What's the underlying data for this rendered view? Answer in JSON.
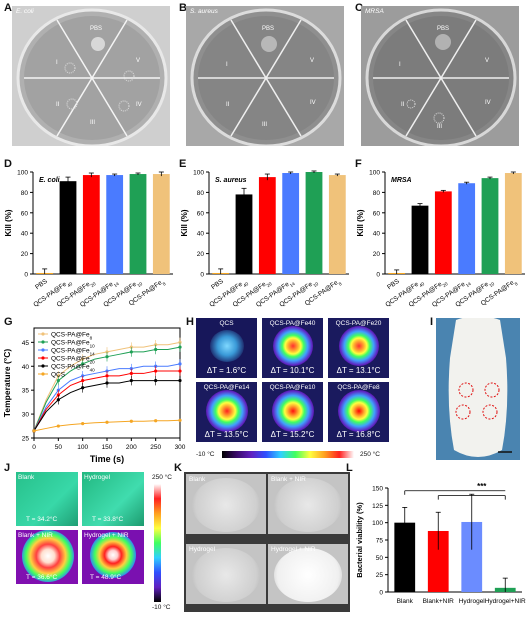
{
  "panels": {
    "A": "A",
    "B": "B",
    "C": "C",
    "D": "D",
    "E": "E",
    "F": "F",
    "G": "G",
    "H": "H",
    "I": "I",
    "J": "J",
    "K": "K",
    "L": "L"
  },
  "plates": [
    {
      "organism": "E. coli",
      "pbs": "PBS",
      "sectors": [
        "I",
        "II",
        "III",
        "IV",
        "V"
      ]
    },
    {
      "organism": "S. aureus",
      "pbs": "PBS",
      "sectors": [
        "I",
        "II",
        "III",
        "IV",
        "V"
      ]
    },
    {
      "organism": "MRSA",
      "pbs": "PBS",
      "sectors": [
        "I",
        "II",
        "III",
        "IV",
        "V"
      ]
    }
  ],
  "chart_data": [
    {
      "type": "bar",
      "panel": "D",
      "title": "E. coli",
      "ylabel": "Kill (%)",
      "ylim": [
        0,
        100
      ],
      "yticks": [
        0,
        20,
        40,
        60,
        80,
        100
      ],
      "categories": [
        "PBS",
        "QCS-PA@Fe40",
        "QCS-PA@Fe20",
        "QCS-PA@Fe14",
        "QCS-PA@Fe10",
        "QCS-PA@Fe8"
      ],
      "values": [
        1,
        91,
        97,
        97,
        98,
        98
      ],
      "errors": [
        4,
        4,
        2,
        1,
        1,
        2
      ],
      "colors": [
        "#f5a623",
        "#000000",
        "#ff0000",
        "#4a7bff",
        "#1fa055",
        "#f0c27a"
      ]
    },
    {
      "type": "bar",
      "panel": "E",
      "title": "S. aureus",
      "ylabel": "Kill (%)",
      "ylim": [
        0,
        100
      ],
      "yticks": [
        0,
        20,
        40,
        60,
        80,
        100
      ],
      "categories": [
        "PBS",
        "QCS-PA@Fe40",
        "QCS-PA@Fe20",
        "QCS-PA@Fe14",
        "QCS-PA@Fe10",
        "QCS-PA@Fe8"
      ],
      "values": [
        1,
        78,
        95,
        99,
        100,
        97
      ],
      "errors": [
        4,
        6,
        3,
        1,
        1,
        1
      ],
      "colors": [
        "#f5a623",
        "#000000",
        "#ff0000",
        "#4a7bff",
        "#1fa055",
        "#f0c27a"
      ]
    },
    {
      "type": "bar",
      "panel": "F",
      "title": "MRSA",
      "ylabel": "Kill (%)",
      "ylim": [
        0,
        100
      ],
      "yticks": [
        0,
        20,
        40,
        60,
        80,
        100
      ],
      "categories": [
        "PBS",
        "QCS-PA@Fe40",
        "QCS-PA@Fe20",
        "QCS-PA@Fe14",
        "QCS-PA@Fe10",
        "QCS-PA@Fe8"
      ],
      "values": [
        1,
        67,
        81,
        89,
        94,
        99
      ],
      "errors": [
        3,
        2,
        1,
        1,
        1,
        1
      ],
      "colors": [
        "#f5a623",
        "#000000",
        "#ff0000",
        "#4a7bff",
        "#1fa055",
        "#f0c27a"
      ]
    },
    {
      "type": "line",
      "panel": "G",
      "xlabel": "Time (s)",
      "ylabel": "Temperature (°C)",
      "xlim": [
        0,
        300
      ],
      "ylim": [
        25,
        48
      ],
      "xticks": [
        0,
        50,
        100,
        150,
        200,
        250,
        300
      ],
      "yticks": [
        25,
        30,
        35,
        40,
        45
      ],
      "x": [
        0,
        25,
        50,
        75,
        100,
        125,
        150,
        175,
        200,
        225,
        250,
        275,
        300
      ],
      "legend": "top-left",
      "series": [
        {
          "name": "QCS-PA@Fe8",
          "color": "#f0c27a",
          "values": [
            26.5,
            33,
            38,
            40,
            41.5,
            42.5,
            43,
            43.5,
            44,
            44,
            44.5,
            44.5,
            45
          ]
        },
        {
          "name": "QCS-PA@Fe10",
          "color": "#1fa055",
          "values": [
            26.5,
            32.5,
            37,
            39,
            40.5,
            41.5,
            42,
            42.5,
            43,
            43,
            43.5,
            43.5,
            44
          ]
        },
        {
          "name": "QCS-PA@Fe14",
          "color": "#4a7bff",
          "values": [
            26.5,
            31.5,
            35,
            37,
            38,
            38.5,
            39,
            39.5,
            39.5,
            40,
            40,
            40,
            40.5
          ]
        },
        {
          "name": "QCS-PA@Fe20",
          "color": "#ff0000",
          "values": [
            26.5,
            31,
            34,
            36,
            37,
            37.5,
            38,
            38,
            38.5,
            38.5,
            39,
            39,
            39
          ]
        },
        {
          "name": "QCS-PA@Fe40",
          "color": "#000000",
          "values": [
            26.5,
            30.5,
            33,
            34.5,
            35.5,
            36,
            36.5,
            36.5,
            37,
            37,
            37,
            37,
            37
          ]
        },
        {
          "name": "QCS",
          "color": "#f5a623",
          "values": [
            26.5,
            27,
            27.5,
            27.8,
            28,
            28.2,
            28.3,
            28.4,
            28.5,
            28.5,
            28.6,
            28.6,
            28.7
          ]
        }
      ]
    },
    {
      "type": "bar",
      "panel": "L",
      "ylabel": "Bacterial viability (%)",
      "ylim": [
        0,
        150
      ],
      "yticks": [
        0,
        25,
        50,
        75,
        100,
        125,
        150
      ],
      "categories": [
        "Blank",
        "Blank+NIR",
        "Hydrogel",
        "Hydrogel+NIR"
      ],
      "values": [
        100,
        88,
        101,
        6
      ],
      "errors": [
        22,
        27,
        40,
        14
      ],
      "colors": [
        "#000000",
        "#ff0000",
        "#6b8cff",
        "#1fa055"
      ],
      "annotation": "***"
    }
  ],
  "thermal": {
    "cells": [
      {
        "label": "QCS",
        "dt": "ΔT = 1.6°C"
      },
      {
        "label": "QCS-PA@Fe40",
        "dt": "ΔT = 10.1°C"
      },
      {
        "label": "QCS-PA@Fe20",
        "dt": "ΔT = 13.1°C"
      },
      {
        "label": "QCS-PA@Fe14",
        "dt": "ΔT = 13.5°C"
      },
      {
        "label": "QCS-PA@Fe10",
        "dt": "ΔT = 15.2°C"
      },
      {
        "label": "QCS-PA@Fe8",
        "dt": "ΔT = 16.8°C"
      }
    ],
    "scale_min": "-10 °C",
    "scale_max": "250 °C"
  },
  "panelJ": {
    "cells": [
      {
        "label": "Blank",
        "temp": "T = 34.2°C"
      },
      {
        "label": "Hydrogel",
        "temp": "T = 33.8°C"
      },
      {
        "label": "Blank + NIR",
        "temp": "T = 36.6°C"
      },
      {
        "label": "Hydrogel + NIR",
        "temp": "T = 48.9°C"
      }
    ],
    "scale_max": "250 °C",
    "scale_min": "-10 °C"
  },
  "panelK": {
    "cells": [
      "Blank",
      "Blank + NIR",
      "Hydrogel",
      "Hydrogel + NIR"
    ]
  }
}
